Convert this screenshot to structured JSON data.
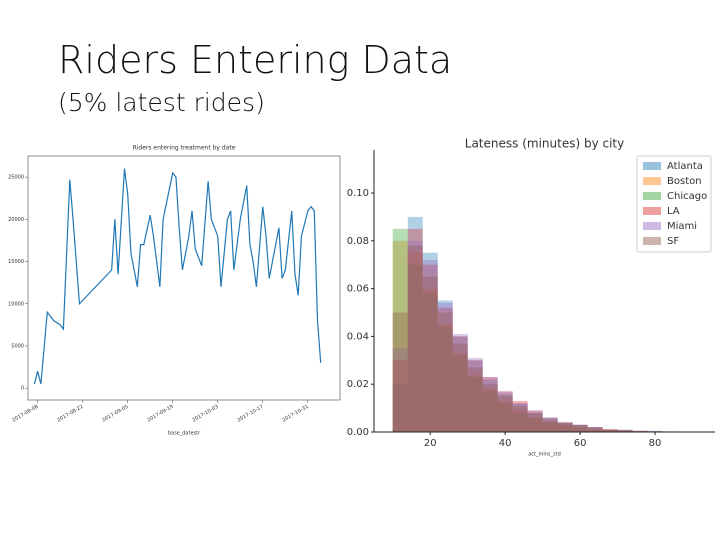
{
  "slide": {
    "title": "Riders Entering Data",
    "subtitle": "(5% latest rides)"
  },
  "chart_data": [
    {
      "type": "line",
      "title": "Riders entering treatment by date",
      "x_label": "base_datestr",
      "x": [
        "2017-08-07",
        "2017-08-08",
        "2017-08-09",
        "2017-08-11",
        "2017-08-13",
        "2017-08-15",
        "2017-08-16",
        "2017-08-18",
        "2017-08-19",
        "2017-08-21",
        "2017-08-31",
        "2017-09-01",
        "2017-09-02",
        "2017-09-04",
        "2017-09-05",
        "2017-09-06",
        "2017-09-08",
        "2017-09-09",
        "2017-09-10",
        "2017-09-12",
        "2017-09-13",
        "2017-09-15",
        "2017-09-16",
        "2017-09-19",
        "2017-09-20",
        "2017-09-21",
        "2017-09-22",
        "2017-09-24",
        "2017-09-25",
        "2017-09-26",
        "2017-09-28",
        "2017-09-30",
        "2017-10-01",
        "2017-10-03",
        "2017-10-04",
        "2017-10-06",
        "2017-10-07",
        "2017-10-08",
        "2017-10-10",
        "2017-10-12",
        "2017-10-13",
        "2017-10-14",
        "2017-10-15",
        "2017-10-17",
        "2017-10-18",
        "2017-10-19",
        "2017-10-20",
        "2017-10-22",
        "2017-10-23",
        "2017-10-24",
        "2017-10-26",
        "2017-10-27",
        "2017-10-28",
        "2017-10-29",
        "2017-10-31",
        "2017-11-01",
        "2017-11-02",
        "2017-11-03",
        "2017-11-04"
      ],
      "values": [
        500,
        2000,
        500,
        9000,
        8000,
        7500,
        7000,
        24700,
        20000,
        10000,
        14000,
        20000,
        13500,
        26000,
        23000,
        16000,
        12000,
        17000,
        17000,
        20500,
        18000,
        12000,
        20000,
        25500,
        25000,
        19000,
        14000,
        18000,
        21000,
        16500,
        14500,
        24500,
        20000,
        18000,
        12000,
        20000,
        21000,
        14000,
        20000,
        24000,
        17000,
        15000,
        12000,
        21500,
        18000,
        13000,
        15000,
        19000,
        13000,
        14000,
        21000,
        13500,
        11000,
        18000,
        21000,
        21500,
        21000,
        8000,
        3000
      ],
      "color": "#1f77b4",
      "xlim": [
        "2017-08-05",
        "2017-11-10"
      ],
      "xticks": [
        "2017-08-08",
        "2017-08-22",
        "2017-09-05",
        "2017-09-19",
        "2017-10-03",
        "2017-10-17",
        "2017-10-31"
      ],
      "ylim": [
        -1400,
        27500
      ],
      "yticks": [
        0,
        5000,
        10000,
        15000,
        20000,
        25000
      ],
      "grid": false
    },
    {
      "type": "histogram",
      "title": "Lateness (minutes) by city",
      "x_label": "act_mins_std",
      "bins": [
        10,
        14,
        18,
        22,
        26,
        30,
        34,
        38,
        42,
        46,
        50,
        54,
        58,
        62,
        66,
        70,
        74,
        78,
        82,
        86,
        90
      ],
      "series": [
        {
          "name": "Atlanta",
          "color": "#1f77b4",
          "values": [
            0.02,
            0.09,
            0.075,
            0.055,
            0.04,
            0.03,
            0.022,
            0.016,
            0.012,
            0.008,
            0.006,
            0.004,
            0.003,
            0.002,
            0.001,
            0.001,
            0.0005,
            0.0005,
            0.0003,
            0.0002
          ]
        },
        {
          "name": "Boston",
          "color": "#ff7f0e",
          "values": [
            0.08,
            0.075,
            0.06,
            0.045,
            0.033,
            0.024,
            0.018,
            0.013,
            0.009,
            0.006,
            0.004,
            0.003,
            0.002,
            0.001,
            0.001,
            0.0005,
            0.0003,
            0.0002,
            0.0001,
            0.0001
          ]
        },
        {
          "name": "Chicago",
          "color": "#2ca02c",
          "values": [
            0.085,
            0.07,
            0.058,
            0.044,
            0.032,
            0.023,
            0.017,
            0.012,
            0.008,
            0.006,
            0.004,
            0.003,
            0.002,
            0.001,
            0.0008,
            0.0005,
            0.0003,
            0.0002,
            0.0001,
            0.0001
          ]
        },
        {
          "name": "LA",
          "color": "#d62728",
          "values": [
            0.03,
            0.085,
            0.07,
            0.052,
            0.04,
            0.03,
            0.023,
            0.017,
            0.013,
            0.009,
            0.006,
            0.004,
            0.003,
            0.002,
            0.0012,
            0.0008,
            0.0005,
            0.0003,
            0.0002,
            0.0001
          ]
        },
        {
          "name": "Miami",
          "color": "#9467bd",
          "values": [
            0.035,
            0.08,
            0.072,
            0.054,
            0.041,
            0.031,
            0.023,
            0.017,
            0.012,
            0.009,
            0.006,
            0.004,
            0.003,
            0.002,
            0.001,
            0.0008,
            0.0005,
            0.0003,
            0.0002,
            0.0001
          ]
        },
        {
          "name": "SF",
          "color": "#8c564b",
          "values": [
            0.05,
            0.078,
            0.065,
            0.05,
            0.037,
            0.027,
            0.02,
            0.015,
            0.011,
            0.008,
            0.005,
            0.004,
            0.003,
            0.002,
            0.001,
            0.0007,
            0.0004,
            0.0002,
            0.0001,
            0.0001
          ]
        }
      ],
      "xlim": [
        5,
        96
      ],
      "xticks": [
        20,
        40,
        60,
        80
      ],
      "ylim": [
        0,
        0.118
      ],
      "yticks": [
        {
          "value": 0,
          "label": "0.00"
        },
        {
          "value": 0.02,
          "label": "0.02"
        },
        {
          "value": 0.04,
          "label": "0.04"
        },
        {
          "value": 0.06,
          "label": "0.06"
        },
        {
          "value": 0.08,
          "label": "0.08"
        },
        {
          "value": 0.1,
          "label": "0.10"
        }
      ],
      "legend": "upper right",
      "grid": false
    }
  ]
}
